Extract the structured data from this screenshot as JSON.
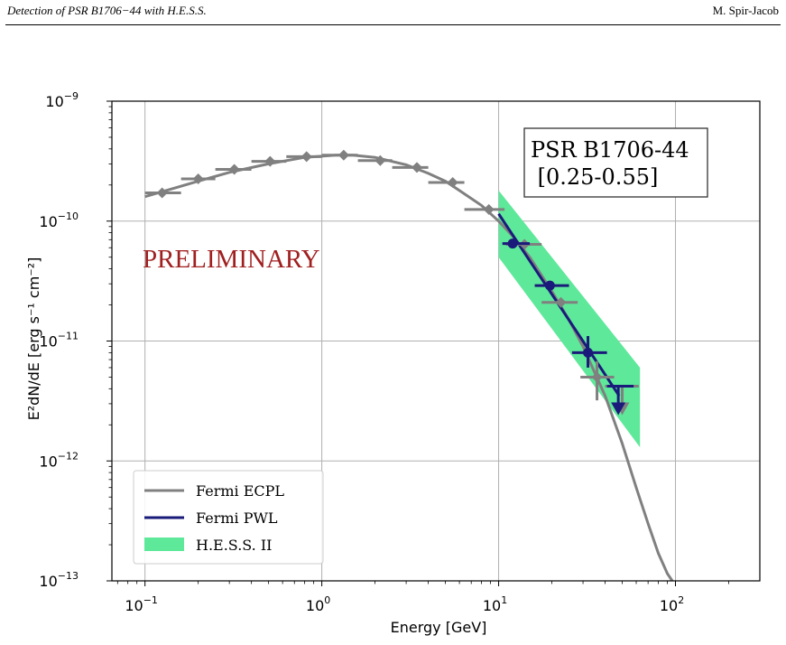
{
  "header": {
    "left": "Detection of PSR B1706−44 with H.E.S.S.",
    "right": "M. Spir-Jacob"
  },
  "chart_data": {
    "type": "scatter",
    "x_scale": "log",
    "y_scale": "log",
    "xlim": [
      0.065,
      300
    ],
    "ylim": [
      1e-13,
      1e-09
    ],
    "xlabel": "Energy [GeV]",
    "ylabel": "E²dN/dE [erg s⁻¹ cm⁻²]",
    "x_ticks": [
      {
        "base": "10",
        "exp": "−1",
        "value": 0.1
      },
      {
        "base": "10",
        "exp": "0",
        "value": 1
      },
      {
        "base": "10",
        "exp": "1",
        "value": 10
      },
      {
        "base": "10",
        "exp": "2",
        "value": 100
      }
    ],
    "y_ticks": [
      {
        "base": "10",
        "exp": "−9",
        "value": 1e-09
      },
      {
        "base": "10",
        "exp": "−10",
        "value": 1e-10
      },
      {
        "base": "10",
        "exp": "−11",
        "value": 1e-11
      },
      {
        "base": "10",
        "exp": "−12",
        "value": 1e-12
      },
      {
        "base": "10",
        "exp": "−13",
        "value": 1e-13
      }
    ],
    "grid": true,
    "annotation": "PRELIMINARY",
    "text_box": [
      "PSR B1706-44",
      " [0.25-0.55]"
    ],
    "legend_position": "lower-left",
    "legend": [
      "Fermi ECPL",
      "Fermi PWL",
      "H.E.S.S. II"
    ],
    "colors": {
      "ecpl": "#808080",
      "pwl": "#1a1a7a",
      "hess": "#5ee89a",
      "prelim": "#a02020"
    },
    "ecpl_points": [
      {
        "x": 0.125,
        "y": 1.72e-10,
        "xlo": 0.1,
        "xhi": 0.16
      },
      {
        "x": 0.2,
        "y": 2.25e-10,
        "xlo": 0.16,
        "xhi": 0.25
      },
      {
        "x": 0.32,
        "y": 2.7e-10,
        "xlo": 0.25,
        "xhi": 0.4
      },
      {
        "x": 0.51,
        "y": 3.15e-10,
        "xlo": 0.4,
        "xhi": 0.63
      },
      {
        "x": 0.82,
        "y": 3.45e-10,
        "xlo": 0.63,
        "xhi": 1.0
      },
      {
        "x": 1.33,
        "y": 3.55e-10,
        "xlo": 1.0,
        "xhi": 1.6
      },
      {
        "x": 2.14,
        "y": 3.2e-10,
        "xlo": 1.6,
        "xhi": 2.5
      },
      {
        "x": 3.45,
        "y": 2.8e-10,
        "xlo": 2.5,
        "xhi": 4.0
      },
      {
        "x": 5.5,
        "y": 2.1e-10,
        "xlo": 4.0,
        "xhi": 6.4
      },
      {
        "x": 8.8,
        "y": 1.25e-10,
        "xlo": 6.4,
        "xhi": 10.8
      },
      {
        "x": 14.0,
        "y": 6.4e-11,
        "xlo": 11.0,
        "xhi": 17.5
      },
      {
        "x": 22.5,
        "y": 2.1e-11,
        "xlo": 17.5,
        "xhi": 28.0
      },
      {
        "x": 36.0,
        "y": 5e-12,
        "xlo": 29.0,
        "xhi": 45.0,
        "ylo": 3.2e-12,
        "yhi": 6.8e-12
      }
    ],
    "ecpl_upper_limits": [
      {
        "x": 50.0,
        "y": 4.2e-12,
        "xlo": 40.0,
        "xhi": 62.0
      }
    ],
    "pwl_points": [
      {
        "x": 12.0,
        "y": 6.5e-11,
        "xlo": 10.5,
        "xhi": 15.0
      },
      {
        "x": 19.5,
        "y": 2.9e-11,
        "xlo": 16.0,
        "xhi": 25.0
      },
      {
        "x": 32.0,
        "y": 8e-12,
        "xlo": 26.0,
        "xhi": 41.0,
        "ylo": 6e-12,
        "yhi": 1.1e-11
      }
    ],
    "pwl_upper_limits": [
      {
        "x": 47.5,
        "y": 4.2e-12,
        "xlo": 41.0,
        "xhi": 58.0
      }
    ],
    "ecpl_curve": {
      "x": [
        0.1,
        0.15,
        0.2,
        0.3,
        0.5,
        0.8,
        1.2,
        1.5,
        2,
        3,
        4,
        5,
        6,
        8,
        10,
        12,
        15,
        20,
        25,
        30,
        40,
        50,
        60,
        70,
        80,
        90,
        96
      ],
      "y": [
        1.6e-10,
        1.9e-10,
        2.15e-10,
        2.55e-10,
        3e-10,
        3.4e-10,
        3.55e-10,
        3.55e-10,
        3.4e-10,
        2.95e-10,
        2.5e-10,
        2.15e-10,
        1.8e-10,
        1.35e-10,
        1e-10,
        7.5e-11,
        5e-11,
        2.6e-11,
        1.5e-11,
        9e-12,
        3.5e-12,
        1.4e-12,
        6e-13,
        3e-13,
        1.7e-13,
        1.15e-13,
        1e-13
      ]
    },
    "pwl_line": {
      "x": [
        10,
        48
      ],
      "y": [
        1.15e-10,
        3.5e-12
      ]
    },
    "hess_band": {
      "x": [
        10,
        63
      ],
      "y_upper": [
        1.8e-10,
        6e-12
      ],
      "y_lower": [
        5e-11,
        1.3e-12
      ]
    }
  }
}
